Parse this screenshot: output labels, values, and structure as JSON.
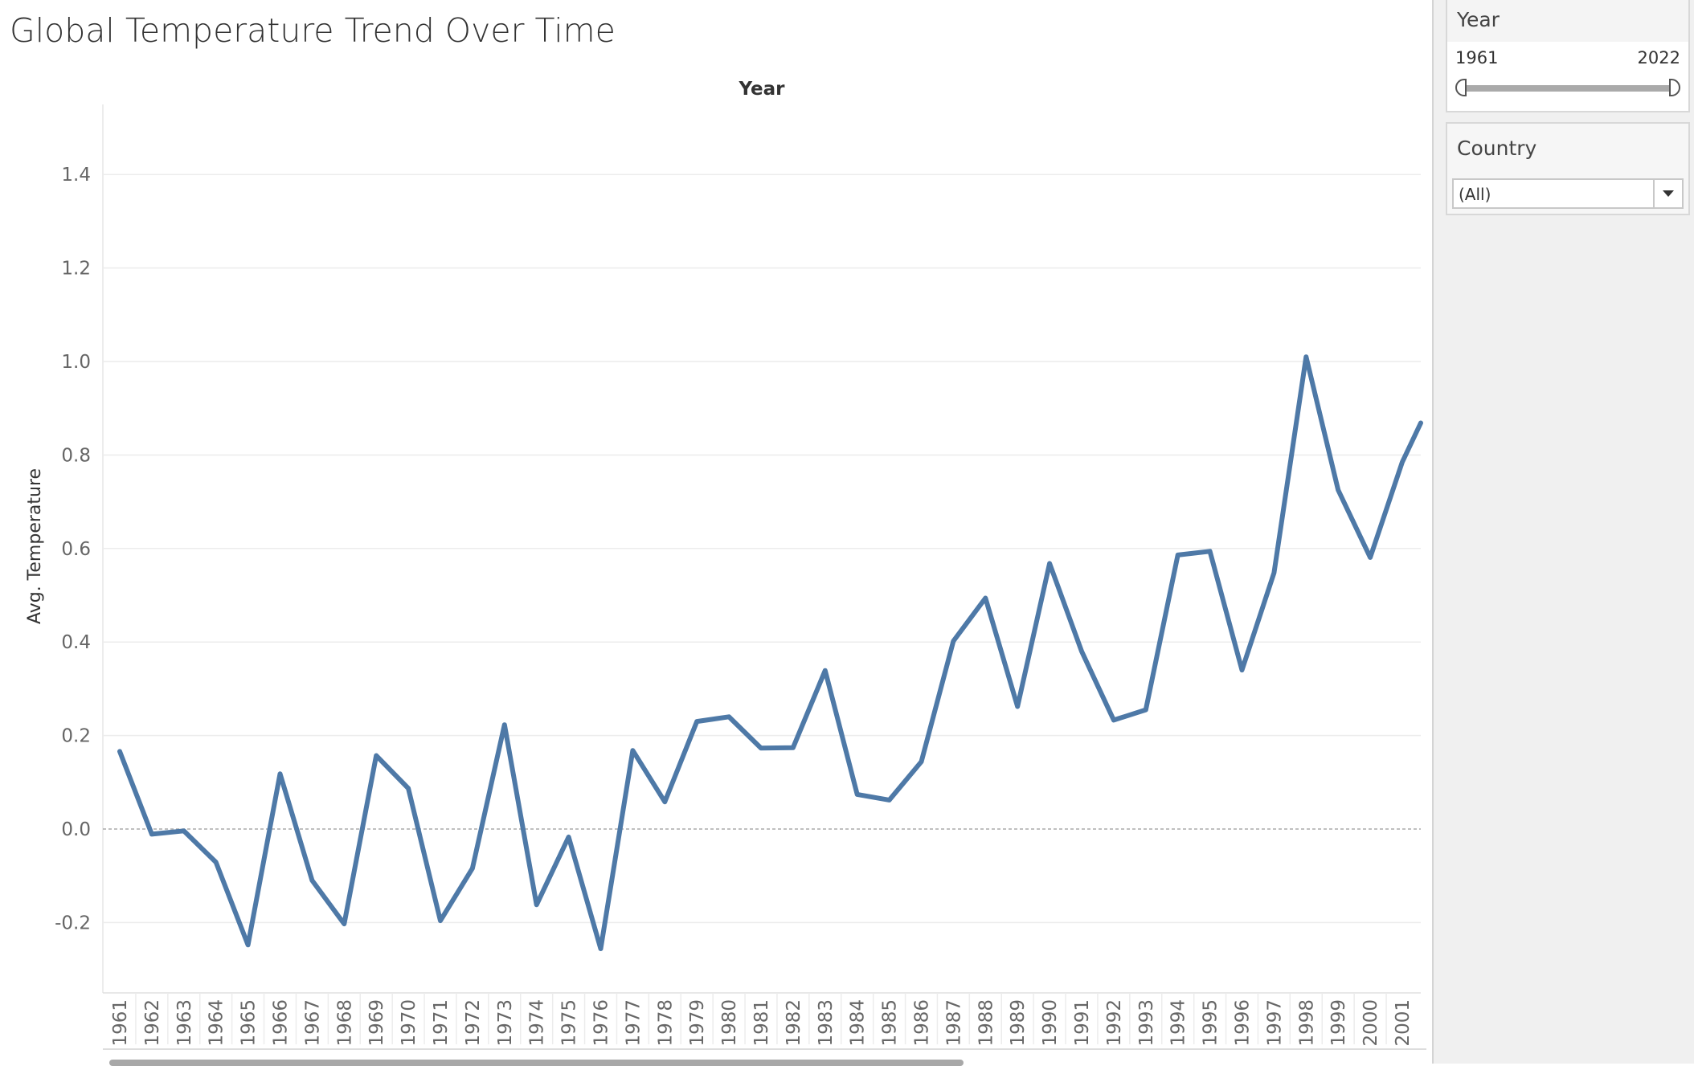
{
  "title": "Global Temperature Trend Over Time",
  "filters": {
    "year": {
      "label": "Year",
      "min": "1961",
      "max": "2022"
    },
    "country": {
      "label": "Country",
      "selected": "(All)"
    }
  },
  "chart_data": {
    "type": "line",
    "title": "Global Temperature Trend Over Time",
    "xlabel": "Year",
    "ylabel": "Avg. Temperature",
    "ylim": [
      -0.35,
      1.55
    ],
    "yticks": [
      -0.2,
      0.0,
      0.2,
      0.4,
      0.6,
      0.8,
      1.0,
      1.2,
      1.4
    ],
    "grid": true,
    "color": "#4e79a7",
    "x": [
      "1961",
      "1962",
      "1963",
      "1964",
      "1965",
      "1966",
      "1967",
      "1968",
      "1969",
      "1970",
      "1971",
      "1972",
      "1973",
      "1974",
      "1975",
      "1976",
      "1977",
      "1978",
      "1979",
      "1980",
      "1981",
      "1982",
      "1983",
      "1984",
      "1985",
      "1986",
      "1987",
      "1988",
      "1989",
      "1990",
      "1991",
      "1992",
      "1993",
      "1994",
      "1995",
      "1996",
      "1997",
      "1998",
      "1999",
      "2000",
      "2001"
    ],
    "values": [
      0.166,
      -0.011,
      -0.004,
      -0.071,
      -0.248,
      0.118,
      -0.11,
      -0.203,
      0.157,
      0.087,
      -0.196,
      -0.084,
      0.223,
      -0.162,
      -0.017,
      -0.256,
      0.168,
      0.058,
      0.23,
      0.24,
      0.173,
      0.174,
      0.339,
      0.074,
      0.062,
      0.144,
      0.402,
      0.494,
      0.262,
      0.568,
      0.38,
      0.233,
      0.255,
      0.586,
      0.594,
      0.34,
      0.548,
      1.01,
      0.725,
      0.581,
      0.785
    ],
    "partial_next": {
      "x": "2002",
      "value": 0.93
    }
  }
}
